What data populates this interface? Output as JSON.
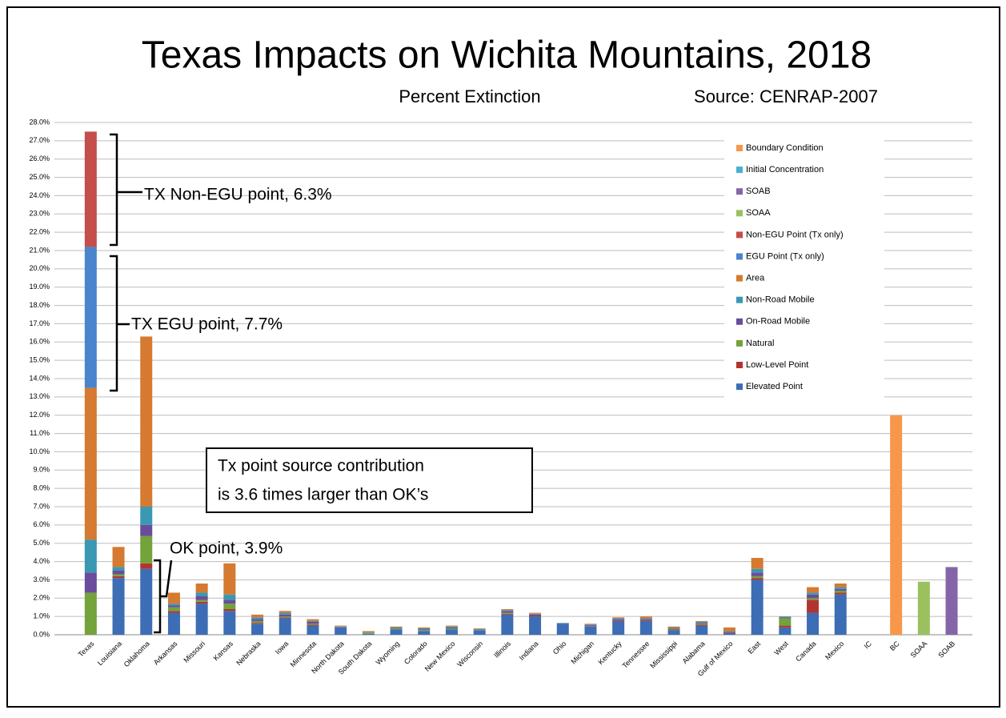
{
  "chart_data": {
    "type": "stacked-bar",
    "title": "Texas Impacts on Wichita Mountains, 2018",
    "subtitle": "Percent Extinction",
    "source": "Source: CENRAP-2007",
    "categories": [
      "Texas",
      "Louisiana",
      "Oklahoma",
      "Arkansas",
      "Missouri",
      "Kansas",
      "Nebraska",
      "Iowa",
      "Minnesota",
      "North Dakota",
      "South Dakota",
      "Wyoming",
      "Colorado",
      "New Mexico",
      "Wisconsin",
      "Illinois",
      "Indiana",
      "Ohio",
      "Michigan",
      "Kentucky",
      "Tennessee",
      "Mississippi",
      "Alabama",
      "Gulf of Mexico",
      "East",
      "West",
      "Canada",
      "Mexico",
      "IC",
      "BC",
      "SOAA",
      "SOAB"
    ],
    "series": [
      {
        "name": "Elevated Point",
        "color": "#3d6db5",
        "values": [
          0,
          3.1,
          3.6,
          1.2,
          1.7,
          1.3,
          0.6,
          0.9,
          0.5,
          0.4,
          0.05,
          0.3,
          0.2,
          0.3,
          0.25,
          1.1,
          1.0,
          0.6,
          0.45,
          0.75,
          0.75,
          0.25,
          0.5,
          0.1,
          3.0,
          0.4,
          1.2,
          2.2,
          0,
          0,
          0,
          0
        ]
      },
      {
        "name": "Low-Level Point",
        "color": "#b1352f",
        "values": [
          0,
          0.1,
          0.3,
          0.1,
          0.1,
          0.1,
          0.05,
          0.05,
          0.05,
          0,
          0,
          0,
          0,
          0,
          0,
          0.05,
          0.05,
          0,
          0.02,
          0.05,
          0.05,
          0.05,
          0.05,
          0.05,
          0.1,
          0.1,
          0.7,
          0.1,
          0,
          0,
          0,
          0
        ]
      },
      {
        "name": "Natural",
        "color": "#74a23b",
        "values": [
          2.3,
          0.1,
          1.5,
          0.2,
          0.1,
          0.3,
          0.1,
          0.05,
          0.05,
          0.02,
          0.05,
          0.05,
          0.05,
          0.05,
          0.02,
          0.05,
          0,
          0,
          0,
          0,
          0,
          0.05,
          0.05,
          0,
          0.1,
          0.4,
          0.1,
          0.1,
          0,
          0,
          0,
          0
        ]
      },
      {
        "name": "On-Road Mobile",
        "color": "#6a4c9c",
        "values": [
          1.1,
          0.2,
          0.6,
          0.1,
          0.2,
          0.2,
          0.1,
          0.1,
          0.1,
          0.03,
          0.02,
          0.03,
          0.05,
          0.05,
          0.03,
          0.1,
          0.05,
          0.02,
          0.05,
          0.05,
          0.05,
          0.03,
          0.05,
          0,
          0.2,
          0.05,
          0.2,
          0.1,
          0,
          0,
          0,
          0
        ]
      },
      {
        "name": "Non-Road Mobile",
        "color": "#3a98b3",
        "values": [
          1.8,
          0.2,
          1.0,
          0.1,
          0.2,
          0.3,
          0.1,
          0.1,
          0.05,
          0.02,
          0.03,
          0.03,
          0.05,
          0.05,
          0.02,
          0.05,
          0.05,
          0.03,
          0.04,
          0.05,
          0.05,
          0.03,
          0.05,
          0.05,
          0.2,
          0.05,
          0.1,
          0.1,
          0,
          0,
          0,
          0
        ]
      },
      {
        "name": "Area",
        "color": "#d57a30",
        "values": [
          8.3,
          1.1,
          9.3,
          0.6,
          0.5,
          1.7,
          0.15,
          0.1,
          0.1,
          0.03,
          0.05,
          0.04,
          0.05,
          0.05,
          0.03,
          0.05,
          0.05,
          0,
          0.04,
          0.05,
          0.1,
          0.04,
          0.05,
          0.2,
          0.6,
          0,
          0.3,
          0.2,
          0,
          0,
          0,
          0
        ]
      },
      {
        "name": "EGU Point (Tx only)",
        "color": "#4a84cc",
        "values": [
          7.7,
          0,
          0,
          0,
          0,
          0,
          0,
          0,
          0,
          0,
          0,
          0,
          0,
          0,
          0,
          0,
          0,
          0,
          0,
          0,
          0,
          0,
          0,
          0,
          0,
          0,
          0,
          0,
          0,
          0,
          0,
          0
        ]
      },
      {
        "name": "Non-EGU Point (Tx only)",
        "color": "#c44e4b",
        "values": [
          6.3,
          0,
          0,
          0,
          0,
          0,
          0,
          0,
          0,
          0,
          0,
          0,
          0,
          0,
          0,
          0,
          0,
          0,
          0,
          0,
          0,
          0,
          0,
          0,
          0,
          0,
          0,
          0,
          0,
          0,
          0,
          0
        ]
      },
      {
        "name": "SOAA",
        "color": "#9bc15e",
        "values": [
          0,
          0,
          0,
          0,
          0,
          0,
          0,
          0,
          0,
          0,
          0,
          0,
          0,
          0,
          0,
          0,
          0,
          0,
          0,
          0,
          0,
          0,
          0,
          0,
          0,
          0,
          0,
          0,
          0,
          0,
          2.9,
          0
        ]
      },
      {
        "name": "SOAB",
        "color": "#8466a8",
        "values": [
          0,
          0,
          0,
          0,
          0,
          0,
          0,
          0,
          0,
          0,
          0,
          0,
          0,
          0,
          0,
          0,
          0,
          0,
          0,
          0,
          0,
          0,
          0,
          0,
          0,
          0,
          0,
          0,
          0,
          0,
          0,
          3.7
        ]
      },
      {
        "name": "Initial Concentration",
        "color": "#4bb0cc",
        "values": [
          0,
          0,
          0,
          0,
          0,
          0,
          0,
          0,
          0,
          0,
          0,
          0,
          0,
          0,
          0,
          0,
          0,
          0,
          0,
          0,
          0,
          0,
          0,
          0,
          0,
          0,
          0,
          0,
          0,
          0,
          0,
          0
        ]
      },
      {
        "name": "Boundary Condition",
        "color": "#f7974a",
        "values": [
          0,
          0,
          0,
          0,
          0,
          0,
          0,
          0,
          0,
          0,
          0,
          0,
          0,
          0,
          0,
          0,
          0,
          0,
          0,
          0,
          0,
          0,
          0,
          0,
          0,
          0,
          0,
          0,
          0,
          12.0,
          0,
          0
        ]
      }
    ],
    "ylim": [
      0,
      28
    ],
    "yticks": [
      {
        "value": 0,
        "label": "0.0%"
      },
      {
        "value": 1,
        "label": "1.0%"
      },
      {
        "value": 2,
        "label": "2.0%"
      },
      {
        "value": 3,
        "label": "3.0%"
      },
      {
        "value": 4,
        "label": "4.0%"
      },
      {
        "value": 5,
        "label": "5.0%"
      },
      {
        "value": 6,
        "label": "6.0%"
      },
      {
        "value": 7,
        "label": "7.0%"
      },
      {
        "value": 8,
        "label": "8.0%"
      },
      {
        "value": 9,
        "label": "9.0%"
      },
      {
        "value": 10,
        "label": "10.0%"
      },
      {
        "value": 11,
        "label": "11.0%"
      },
      {
        "value": 12,
        "label": "12.0%"
      },
      {
        "value": 13,
        "label": "13.0%"
      },
      {
        "value": 14,
        "label": "14.0%"
      },
      {
        "value": 15,
        "label": "15.0%"
      },
      {
        "value": 16,
        "label": "16.0%"
      },
      {
        "value": 17,
        "label": "17.0%"
      },
      {
        "value": 18,
        "label": "18.0%"
      },
      {
        "value": 19,
        "label": "19.0%"
      },
      {
        "value": 20,
        "label": "20.0%"
      },
      {
        "value": 21,
        "label": "21.0%"
      },
      {
        "value": 22,
        "label": "22.0%"
      },
      {
        "value": 23,
        "label": "23.0%"
      },
      {
        "value": 24,
        "label": "24.0%"
      },
      {
        "value": 25,
        "label": "25.0%"
      },
      {
        "value": 26,
        "label": "26.0%"
      },
      {
        "value": 27,
        "label": "27.0%"
      },
      {
        "value": 28,
        "label": "28.0%"
      }
    ],
    "grid": true,
    "legend": "upper right",
    "annotations": [
      "TX Non-EGU point, 6.3%",
      "TX EGU point, 7.7%",
      "OK point, 3.9%"
    ],
    "callout": [
      "Tx point source contribution",
      "is 3.6 times larger than OK’s"
    ]
  }
}
